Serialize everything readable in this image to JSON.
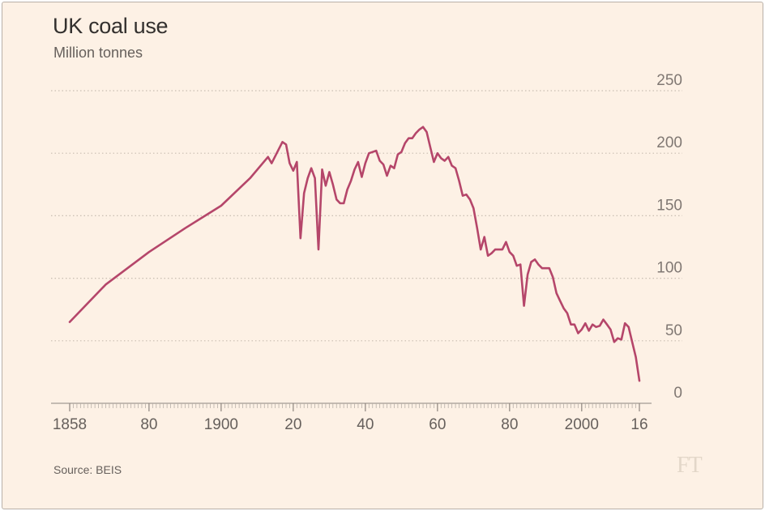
{
  "title": "UK coal use",
  "subtitle": "Million tonnes",
  "source": "Source: BEIS",
  "logo_text": "FT",
  "colors": {
    "background": "#fdf1e5",
    "line": "#b5466a",
    "grid": "#c9beb2",
    "text": "#33302e"
  },
  "chart_data": {
    "type": "line",
    "title": "UK coal use",
    "subtitle": "Million tonnes",
    "xlabel": "",
    "ylabel": "",
    "xlim": [
      1858,
      2016
    ],
    "ylim": [
      0,
      250
    ],
    "y_ticks": [
      0,
      50,
      100,
      150,
      200,
      250
    ],
    "y_tick_labels": [
      "0",
      "50",
      "100",
      "150",
      "200",
      "250"
    ],
    "x_ticks": [
      1858,
      1880,
      1900,
      1920,
      1940,
      1960,
      1980,
      2000,
      2016
    ],
    "x_tick_labels": [
      "1858",
      "80",
      "1900",
      "20",
      "40",
      "60",
      "80",
      "2000",
      "16"
    ],
    "grid": true,
    "grid_style": "dotted horizontal",
    "series": [
      {
        "values": [
          [
            1858,
            65
          ],
          [
            1868,
            95
          ],
          [
            1880,
            121
          ],
          [
            1890,
            140
          ],
          [
            1900,
            158
          ],
          [
            1908,
            180
          ],
          [
            1913,
            197
          ],
          [
            1914,
            192
          ],
          [
            1917,
            209
          ],
          [
            1918,
            207
          ],
          [
            1919,
            192
          ],
          [
            1920,
            186
          ],
          [
            1921,
            193
          ],
          [
            1922,
            132
          ],
          [
            1923,
            168
          ],
          [
            1924,
            180
          ],
          [
            1925,
            188
          ],
          [
            1926,
            180
          ],
          [
            1927,
            123
          ],
          [
            1928,
            187
          ],
          [
            1929,
            174
          ],
          [
            1930,
            185
          ],
          [
            1931,
            175
          ],
          [
            1932,
            163
          ],
          [
            1933,
            160
          ],
          [
            1934,
            160
          ],
          [
            1935,
            171
          ],
          [
            1936,
            178
          ],
          [
            1937,
            187
          ],
          [
            1938,
            193
          ],
          [
            1939,
            181
          ],
          [
            1940,
            192
          ],
          [
            1941,
            200
          ],
          [
            1942,
            201
          ],
          [
            1943,
            202
          ],
          [
            1944,
            194
          ],
          [
            1945,
            191
          ],
          [
            1946,
            182
          ],
          [
            1947,
            190
          ],
          [
            1948,
            188
          ],
          [
            1949,
            199
          ],
          [
            1950,
            201
          ],
          [
            1951,
            208
          ],
          [
            1952,
            212
          ],
          [
            1953,
            212
          ],
          [
            1954,
            216
          ],
          [
            1955,
            219
          ],
          [
            1956,
            221
          ],
          [
            1957,
            217
          ],
          [
            1958,
            205
          ],
          [
            1959,
            193
          ],
          [
            1960,
            200
          ],
          [
            1961,
            196
          ],
          [
            1962,
            194
          ],
          [
            1963,
            197
          ],
          [
            1964,
            190
          ],
          [
            1965,
            188
          ],
          [
            1966,
            178
          ],
          [
            1967,
            166
          ],
          [
            1968,
            167
          ],
          [
            1969,
            163
          ],
          [
            1970,
            156
          ],
          [
            1971,
            140
          ],
          [
            1972,
            123
          ],
          [
            1973,
            133
          ],
          [
            1974,
            118
          ],
          [
            1975,
            120
          ],
          [
            1976,
            123
          ],
          [
            1977,
            123
          ],
          [
            1978,
            123
          ],
          [
            1979,
            129
          ],
          [
            1980,
            121
          ],
          [
            1981,
            118
          ],
          [
            1982,
            110
          ],
          [
            1983,
            111
          ],
          [
            1984,
            78
          ],
          [
            1985,
            103
          ],
          [
            1986,
            113
          ],
          [
            1987,
            115
          ],
          [
            1988,
            111
          ],
          [
            1989,
            108
          ],
          [
            1990,
            108
          ],
          [
            1991,
            108
          ],
          [
            1992,
            101
          ],
          [
            1993,
            88
          ],
          [
            1994,
            82
          ],
          [
            1995,
            76
          ],
          [
            1996,
            72
          ],
          [
            1997,
            63
          ],
          [
            1998,
            63
          ],
          [
            1999,
            56
          ],
          [
            2000,
            59
          ],
          [
            2001,
            64
          ],
          [
            2002,
            58
          ],
          [
            2003,
            63
          ],
          [
            2004,
            61
          ],
          [
            2005,
            62
          ],
          [
            2006,
            67
          ],
          [
            2007,
            63
          ],
          [
            2008,
            59
          ],
          [
            2009,
            49
          ],
          [
            2010,
            52
          ],
          [
            2011,
            51
          ],
          [
            2012,
            64
          ],
          [
            2013,
            61
          ],
          [
            2014,
            49
          ],
          [
            2015,
            37
          ],
          [
            2016,
            18
          ]
        ]
      }
    ]
  }
}
